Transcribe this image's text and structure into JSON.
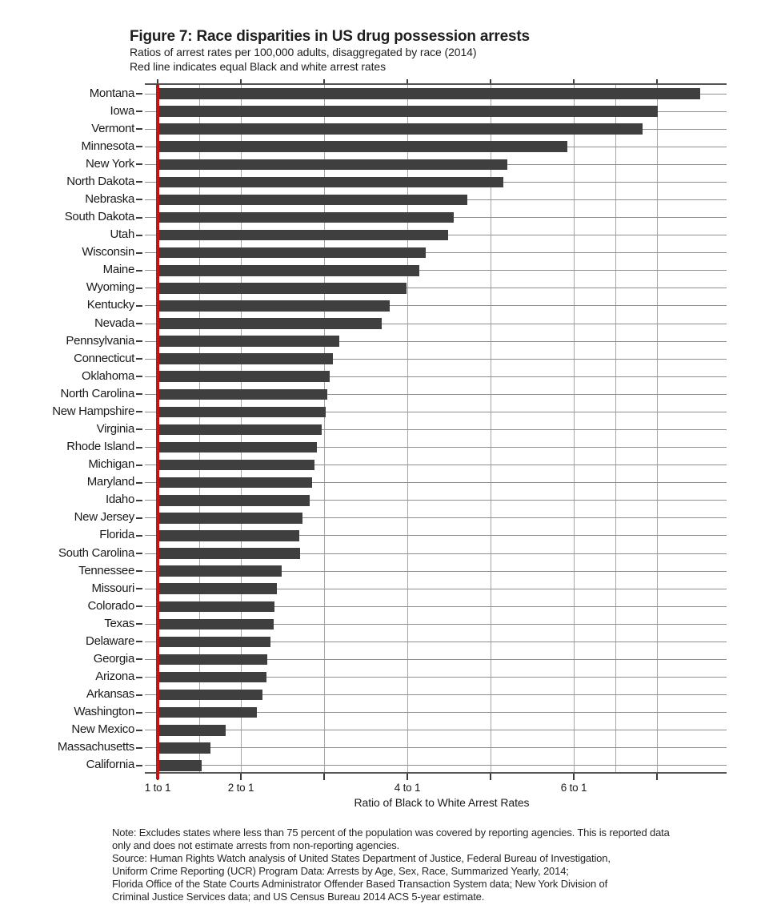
{
  "figure": {
    "title": "Figure 7: Race disparities in US drug possession arrests",
    "subtitle1": "Ratios of arrest rates per 100,000 adults, disaggregated by race (2014)",
    "subtitle2": "Red line indicates equal Black and white arrest rates"
  },
  "chart_data": {
    "type": "bar",
    "orientation": "horizontal",
    "title": "Figure 7: Race disparities in US drug possession arrests",
    "xlabel": "Ratio of Black to White Arrest Rates",
    "ylabel": "",
    "xlim": [
      1,
      7.85
    ],
    "grid": true,
    "bar_color": "#3f3f3f",
    "x_axis": {
      "labeled_ticks": [
        {
          "value": 1,
          "label": "1 to 1"
        },
        {
          "value": 2,
          "label": "2 to 1"
        },
        {
          "value": 4,
          "label": "4 to 1"
        },
        {
          "value": 6,
          "label": "6 to 1"
        }
      ],
      "minor_ticks": [
        1,
        2,
        3,
        4,
        5,
        6,
        7
      ],
      "gridlines": [
        1.5,
        2,
        3,
        4,
        5,
        6,
        6.5,
        7
      ],
      "reference_line": {
        "value": 1,
        "color": "#c41414",
        "meaning": "equal Black and white arrest rates"
      }
    },
    "categories": [
      "Montana",
      "Iowa",
      "Vermont",
      "Minnesota",
      "New York",
      "North Dakota",
      "Nebraska",
      "South Dakota",
      "Utah",
      "Wisconsin",
      "Maine",
      "Wyoming",
      "Kentucky",
      "Nevada",
      "Pennsylvania",
      "Connecticut",
      "Oklahoma",
      "North Carolina",
      "New Hampshire",
      "Virginia",
      "Rhode Island",
      "Michigan",
      "Maryland",
      "Idaho",
      "New Jersey",
      "Florida",
      "South Carolina",
      "Tennessee",
      "Missouri",
      "Colorado",
      "Texas",
      "Delaware",
      "Georgia",
      "Arizona",
      "Arkansas",
      "Washington",
      "New Mexico",
      "Massachusetts",
      "California"
    ],
    "values": [
      7.52,
      7.01,
      6.83,
      5.92,
      5.2,
      5.15,
      4.72,
      4.56,
      4.49,
      4.22,
      4.14,
      3.99,
      3.79,
      3.69,
      3.18,
      3.11,
      3.07,
      3.04,
      3.02,
      2.97,
      2.91,
      2.88,
      2.86,
      2.83,
      2.74,
      2.7,
      2.71,
      2.49,
      2.43,
      2.4,
      2.39,
      2.36,
      2.32,
      2.31,
      2.26,
      2.19,
      1.82,
      1.63,
      1.53
    ]
  },
  "note_lines": [
    "Note: Excludes states where less than 75 percent of the population was covered by reporting agencies. This is reported data",
    "only and does not estimate arrests from non-reporting agencies.",
    "Source: Human Rights Watch analysis of United States Department of Justice, Federal Bureau of Investigation,",
    "Uniform Crime Reporting (UCR) Program Data: Arrests by Age, Sex, Race, Summarized Yearly, 2014;",
    "Florida Office of the State Courts Administrator Offender Based Transaction System data; New York Division of",
    "Criminal Justice Services data; and US Census Bureau 2014 ACS 5-year estimate."
  ],
  "colors": {
    "bar": "#3f3f3f",
    "reference_line": "#c41414",
    "row_line": "#8e8e8e",
    "gridline": "#a6a6a6",
    "axis": "#555555",
    "text": "#1a1a1a",
    "background": "#ffffff"
  }
}
